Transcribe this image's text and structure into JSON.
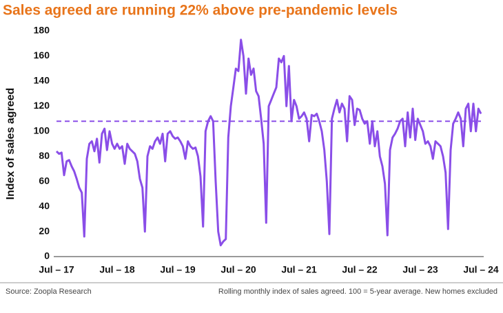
{
  "chart_data": {
    "type": "line",
    "title": "Sales agreed are running 22% above pre-pandemic levels",
    "y_label": "Index of sales agreed",
    "source": "Source: Zoopla Research",
    "note": "Rolling monthly index of sales agreed. 100 = 5-year average. New homes excluded",
    "categories": [
      "Jul – 17",
      null,
      null,
      null,
      null,
      null,
      null,
      null,
      null,
      null,
      null,
      null,
      null,
      null,
      null,
      null,
      null,
      null,
      null,
      null,
      null,
      null,
      null,
      null,
      "Jul – 18",
      null,
      null,
      null,
      null,
      null,
      null,
      null,
      null,
      null,
      null,
      null,
      null,
      null,
      null,
      null,
      null,
      null,
      null,
      null,
      null,
      null,
      null,
      null,
      "Jul – 19",
      null,
      null,
      null,
      null,
      null,
      null,
      null,
      null,
      null,
      null,
      null,
      null,
      null,
      null,
      null,
      null,
      null,
      null,
      null,
      null,
      null,
      null,
      null,
      "Jul – 20",
      null,
      null,
      null,
      null,
      null,
      null,
      null,
      null,
      null,
      null,
      null,
      null,
      null,
      null,
      null,
      null,
      null,
      null,
      null,
      null,
      null,
      null,
      null,
      "Jul – 21",
      null,
      null,
      null,
      null,
      null,
      null,
      null,
      null,
      null,
      null,
      null,
      null,
      null,
      null,
      null,
      null,
      null,
      null,
      null,
      null,
      null,
      null,
      null,
      "Jul – 22",
      null,
      null,
      null,
      null,
      null,
      null,
      null,
      null,
      null,
      null,
      null,
      null,
      null,
      null,
      null,
      null,
      null,
      null,
      null,
      null,
      null,
      null,
      null,
      "Jul – 23",
      null,
      null,
      null,
      null,
      null,
      null,
      null,
      null,
      null,
      null,
      null,
      null,
      null,
      null,
      null,
      null,
      null,
      null,
      null,
      null,
      null,
      null,
      null,
      "Jul – 24"
    ],
    "series": [
      {
        "color": "#8a4ee8",
        "values": [
          84,
          82,
          83,
          65,
          76,
          77,
          72,
          68,
          62,
          55,
          51,
          16,
          78,
          90,
          92,
          84,
          94,
          75,
          98,
          102,
          85,
          100,
          90,
          86,
          90,
          86,
          88,
          74,
          90,
          86,
          84,
          82,
          76,
          62,
          55,
          20,
          80,
          88,
          86,
          92,
          95,
          90,
          98,
          76,
          98,
          100,
          96,
          94,
          95,
          92,
          88,
          78,
          92,
          88,
          86,
          87,
          80,
          64,
          24,
          100,
          108,
          112,
          108,
          60,
          20,
          9,
          12,
          14,
          95,
          120,
          135,
          150,
          148,
          173,
          160,
          130,
          158,
          145,
          150,
          132,
          128,
          110,
          90,
          27,
          120,
          125,
          130,
          135,
          158,
          155,
          160,
          120,
          152,
          108,
          125,
          120,
          110,
          112,
          115,
          110,
          92,
          113,
          112,
          114,
          108,
          100,
          85,
          60,
          18,
          110,
          118,
          125,
          115,
          122,
          118,
          92,
          128,
          125,
          105,
          118,
          117,
          110,
          106,
          108,
          90,
          108,
          88,
          100,
          80,
          72,
          58,
          17,
          85,
          95,
          98,
          102,
          108,
          110,
          88,
          115,
          95,
          118,
          93,
          110,
          105,
          100,
          90,
          92,
          88,
          78,
          92,
          90,
          88,
          80,
          67,
          22,
          85,
          106,
          110,
          115,
          110,
          88,
          118,
          122,
          100,
          122,
          100,
          118,
          114
        ]
      }
    ],
    "reference_line": 108,
    "ylim": [
      0,
      180
    ],
    "yticks": [
      0,
      20,
      40,
      60,
      80,
      100,
      120,
      140,
      160,
      180
    ]
  }
}
